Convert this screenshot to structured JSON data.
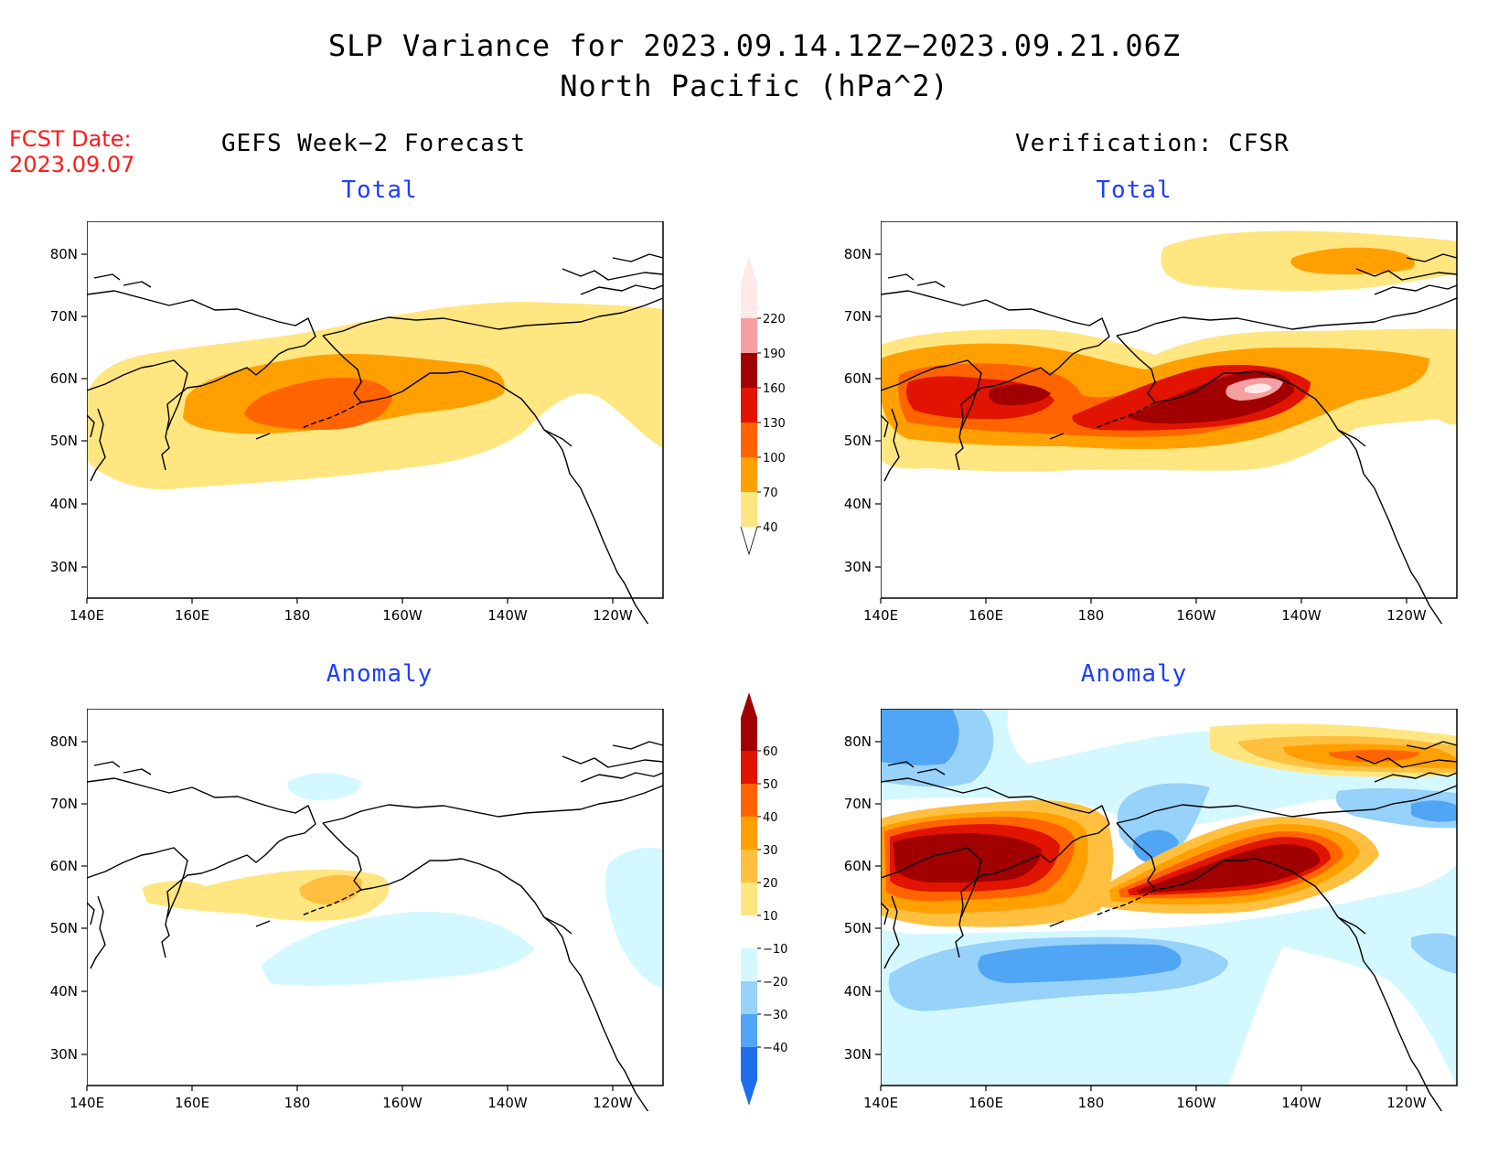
{
  "title": {
    "line1": "SLP Variance for 2023.09.14.12Z−2023.09.21.06Z",
    "line2": "North Pacific (hPa^2)"
  },
  "fcst": {
    "label": "FCST Date:",
    "date": "2023.09.07"
  },
  "columns": {
    "left": "GEFS Week−2 Forecast",
    "right": "Verification: CFSR"
  },
  "panel_titles": {
    "total": "Total",
    "anomaly": "Anomaly"
  },
  "axes": {
    "lat_ticks": [
      "80N",
      "70N",
      "60N",
      "50N",
      "40N",
      "30N"
    ],
    "lon_ticks": [
      "140E",
      "160E",
      "180",
      "160W",
      "140W",
      "120W"
    ]
  },
  "colorbars": {
    "total": {
      "labels": [
        "220",
        "190",
        "160",
        "130",
        "100",
        "70",
        "40"
      ],
      "colors": [
        "#ffe9e9",
        "#f4a0a0",
        "#a00000",
        "#e01400",
        "#ff6400",
        "#ffa000",
        "#ffe680"
      ]
    },
    "anomaly": {
      "labels": [
        "60",
        "50",
        "40",
        "30",
        "20",
        "10",
        "−10",
        "−20",
        "−30",
        "−40"
      ],
      "colors": [
        "#a00000",
        "#e01400",
        "#ff6400",
        "#ffa000",
        "#ffc040",
        "#ffe680",
        "#ffffff",
        "#d4f8ff",
        "#96d2fa",
        "#50a5f5",
        "#1e6eeb"
      ]
    }
  }
}
